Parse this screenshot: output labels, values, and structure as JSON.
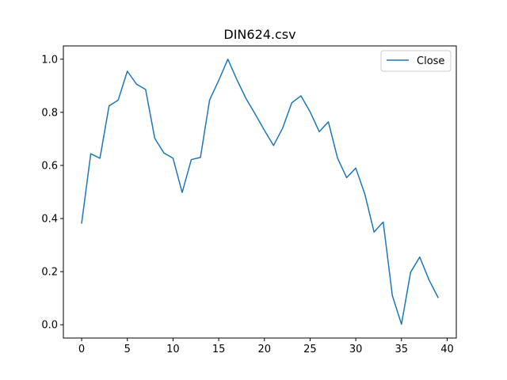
{
  "chart_data": {
    "type": "line",
    "title": "DIN624.csv",
    "xlabel": "",
    "ylabel": "",
    "xlim": [
      -2,
      41
    ],
    "ylim": [
      -0.05,
      1.05
    ],
    "xticks": [
      0,
      5,
      10,
      15,
      20,
      25,
      30,
      35,
      40
    ],
    "yticks": [
      0.0,
      0.2,
      0.4,
      0.6,
      0.8,
      1.0
    ],
    "xtick_labels": [
      "0",
      "5",
      "10",
      "15",
      "20",
      "25",
      "30",
      "35",
      "40"
    ],
    "ytick_labels": [
      "0.0",
      "0.2",
      "0.4",
      "0.6",
      "0.8",
      "1.0"
    ],
    "grid": false,
    "legend_position": "top-right",
    "series": [
      {
        "name": "Close",
        "color": "#1f77b4",
        "x": [
          0,
          1,
          2,
          3,
          4,
          5,
          6,
          7,
          8,
          9,
          10,
          11,
          12,
          13,
          14,
          15,
          16,
          17,
          18,
          19,
          20,
          21,
          22,
          23,
          24,
          25,
          26,
          27,
          28,
          29,
          30,
          31,
          32,
          33,
          34,
          35,
          36,
          37,
          38,
          39
        ],
        "values": [
          0.383,
          0.644,
          0.627,
          0.824,
          0.846,
          0.955,
          0.906,
          0.886,
          0.702,
          0.647,
          0.627,
          0.498,
          0.622,
          0.63,
          0.846,
          0.92,
          1.0,
          0.922,
          0.851,
          0.793,
          0.732,
          0.675,
          0.741,
          0.836,
          0.862,
          0.802,
          0.727,
          0.764,
          0.628,
          0.554,
          0.59,
          0.491,
          0.349,
          0.387,
          0.11,
          0.002,
          0.198,
          0.255,
          0.17,
          0.103
        ]
      }
    ]
  }
}
